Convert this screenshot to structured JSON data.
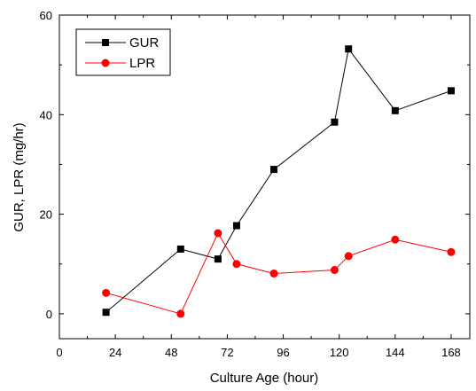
{
  "chart_data": {
    "type": "line",
    "xlabel": "Culture Age (hour)",
    "ylabel": "GUR, LPR (mg/hr)",
    "xlim": [
      0,
      176
    ],
    "ylim": [
      -5,
      60
    ],
    "xticks": [
      0,
      24,
      48,
      72,
      96,
      120,
      144,
      168
    ],
    "yticks": [
      0,
      20,
      40,
      60
    ],
    "xtick_labels": [
      "0",
      "24",
      "48",
      "72",
      "96",
      "120",
      "144",
      "168"
    ],
    "ytick_labels": [
      "0",
      "20",
      "40",
      "60"
    ],
    "grid": false,
    "legend_position": "top-left",
    "series": [
      {
        "name": "GUR",
        "marker": "square",
        "color": "#000000",
        "x": [
          20,
          52,
          68,
          76,
          92,
          118,
          124,
          144,
          168
        ],
        "y": [
          0.3,
          13.0,
          11.0,
          17.7,
          29.0,
          38.5,
          53.2,
          40.8,
          44.8
        ]
      },
      {
        "name": "LPR",
        "marker": "circle",
        "color": "#ff0000",
        "x": [
          20,
          52,
          68,
          76,
          92,
          118,
          124,
          144,
          168
        ],
        "y": [
          4.2,
          0.0,
          16.2,
          10.0,
          8.1,
          8.8,
          11.6,
          14.9,
          12.4
        ]
      }
    ]
  }
}
